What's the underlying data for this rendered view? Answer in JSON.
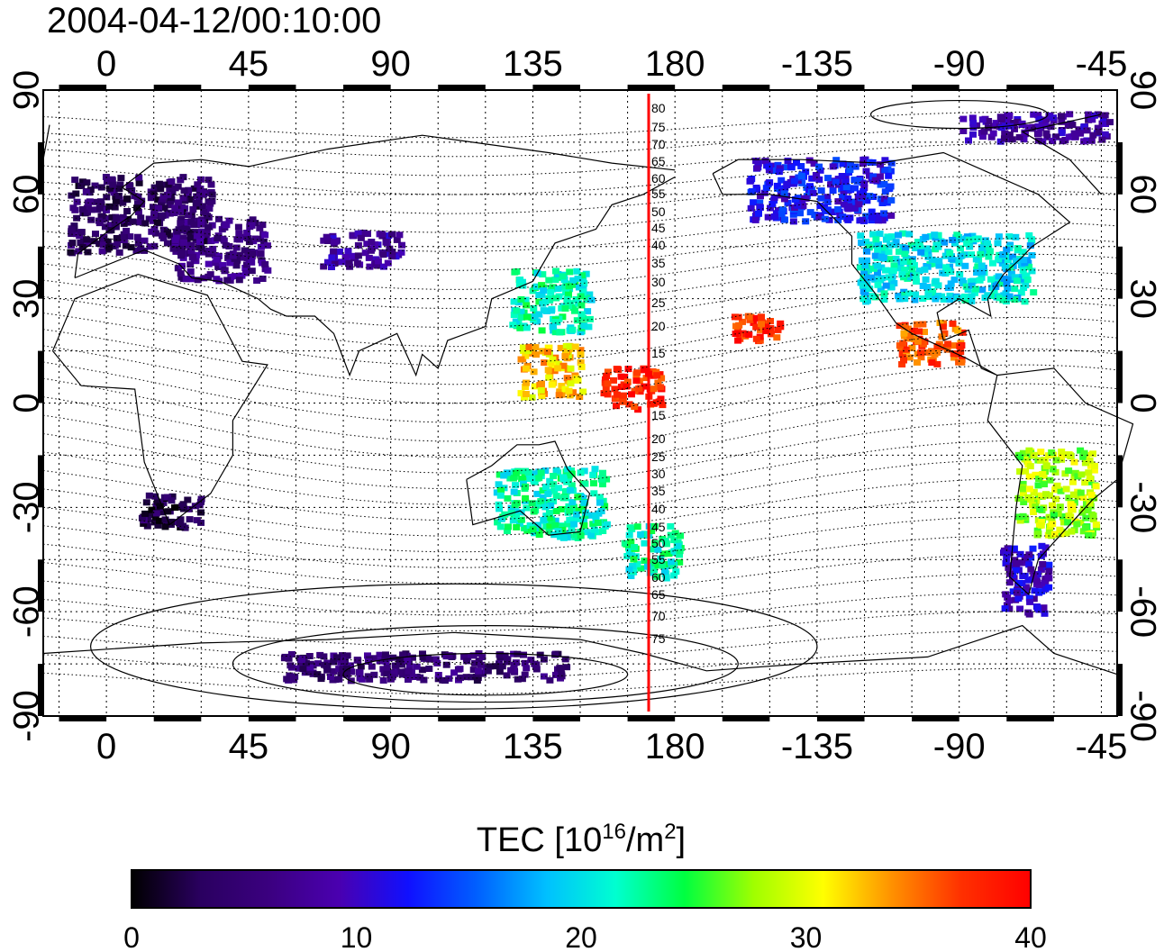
{
  "title": "2004-04-12/00:10:00",
  "x_ticks_top": [
    "0",
    "45",
    "90",
    "135",
    "180",
    "-135",
    "-90",
    "-45"
  ],
  "x_ticks_bottom": [
    "0",
    "45",
    "90",
    "135",
    "180",
    "-135",
    "-90",
    "-45"
  ],
  "y_ticks_left": [
    "90",
    "60",
    "30",
    "0",
    "-30",
    "-60",
    "-90"
  ],
  "y_ticks_right": [
    "90",
    "60",
    "30",
    "0",
    "-30",
    "-60",
    "-90"
  ],
  "meridian_labels_upper": [
    "80",
    "75",
    "70",
    "65",
    "60",
    "55",
    "50",
    "45",
    "40",
    "35",
    "30",
    "25",
    "20",
    "15"
  ],
  "meridian_labels_lower": [
    "15",
    "20",
    "25",
    "30",
    "35",
    "40",
    "45",
    "50",
    "55",
    "60",
    "65",
    "70",
    "75"
  ],
  "colorbar": {
    "label_main": "TEC  [10",
    "label_exp": "16",
    "label_unit": "/m",
    "label_exp2": "2",
    "label_end": "]",
    "ticks": [
      "0",
      "10",
      "20",
      "30",
      "40"
    ],
    "min": 0,
    "max": 40,
    "colormap": [
      "#000000",
      "#2a0060",
      "#3b0080",
      "#4a00b0",
      "#1010ff",
      "#0060ff",
      "#00c0ff",
      "#00ffd0",
      "#00ff40",
      "#a0ff00",
      "#ffff00",
      "#ff9000",
      "#ff3000",
      "#ff0000"
    ]
  },
  "meridian_line_color": "#ff0000",
  "map_projection": "equirectangular",
  "lon_range": [
    -20,
    320
  ],
  "lat_range": [
    -90,
    90
  ],
  "chart_data": {
    "type": "heatmap",
    "title": "2004-04-12/00:10:00",
    "xlabel": "",
    "ylabel": "",
    "xlim": [
      -20,
      320
    ],
    "ylim": [
      -90,
      90
    ],
    "colorbar_label": "TEC  [10^16/m^2]",
    "colorbar_range": [
      0,
      40
    ],
    "regions": [
      {
        "lon": 10,
        "lat": 55,
        "tec": 4,
        "w": 45,
        "h": 22
      },
      {
        "lon": 35,
        "lat": 45,
        "tec": 6,
        "w": 30,
        "h": 18
      },
      {
        "lon": 80,
        "lat": 45,
        "tec": 8,
        "w": 25,
        "h": 10
      },
      {
        "lon": 140,
        "lat": 30,
        "tec": 22,
        "w": 25,
        "h": 18
      },
      {
        "lon": 140,
        "lat": 10,
        "tec": 32,
        "w": 20,
        "h": 15
      },
      {
        "lon": 165,
        "lat": 5,
        "tec": 38,
        "w": 20,
        "h": 12
      },
      {
        "lon": 140,
        "lat": -28,
        "tec": 22,
        "w": 35,
        "h": 20
      },
      {
        "lon": 172,
        "lat": -42,
        "tec": 22,
        "w": 18,
        "h": 15
      },
      {
        "lon": 225,
        "lat": 62,
        "tec": 12,
        "w": 45,
        "h": 18
      },
      {
        "lon": 265,
        "lat": 40,
        "tec": 20,
        "w": 55,
        "h": 20
      },
      {
        "lon": 260,
        "lat": 18,
        "tec": 36,
        "w": 20,
        "h": 12
      },
      {
        "lon": 205,
        "lat": 22,
        "tec": 38,
        "w": 15,
        "h": 8
      },
      {
        "lon": 300,
        "lat": -25,
        "tec": 28,
        "w": 25,
        "h": 25
      },
      {
        "lon": 290,
        "lat": -50,
        "tec": 10,
        "w": 15,
        "h": 20
      },
      {
        "lon": 20,
        "lat": -30,
        "tec": 3,
        "w": 20,
        "h": 10
      },
      {
        "lon": 100,
        "lat": -75,
        "tec": 5,
        "w": 90,
        "h": 8
      },
      {
        "lon": 300,
        "lat": 80,
        "tec": 8,
        "w": 60,
        "h": 8
      }
    ]
  }
}
